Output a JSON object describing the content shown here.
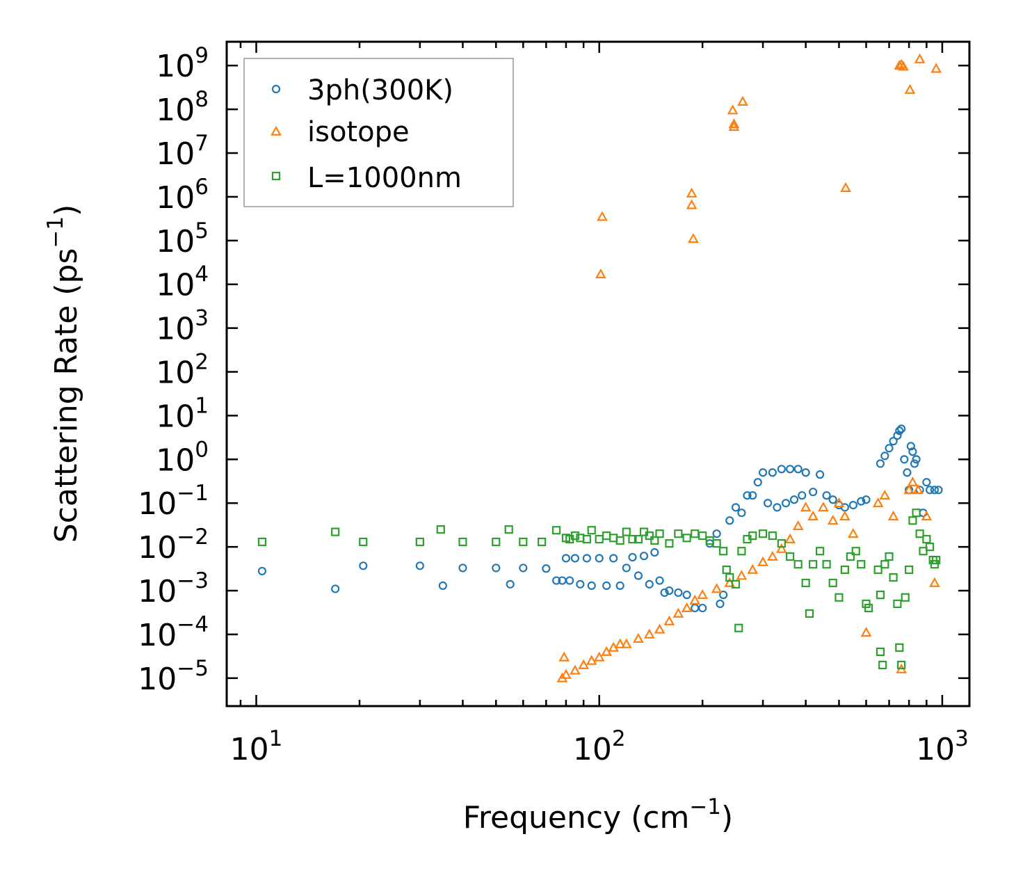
{
  "chart_data": {
    "type": "scatter",
    "title": "",
    "xlabel": {
      "base": "Frequency (cm",
      "sup": "−1",
      "end": ")"
    },
    "ylabel": {
      "base": "Scattering Rate (ps",
      "sup": "−1",
      "end": ")"
    },
    "xscale": "log",
    "yscale": "log",
    "xlim": [
      8.2,
      1200
    ],
    "ylim": [
      2.3e-06,
      3500000000.0
    ],
    "x_ticks": [
      {
        "value": 10,
        "base": "10",
        "exp": "1"
      },
      {
        "value": 100,
        "base": "10",
        "exp": "2"
      },
      {
        "value": 1000,
        "base": "10",
        "exp": "3"
      }
    ],
    "y_ticks": [
      {
        "value": 1e-05,
        "base": "10",
        "exp": "−5"
      },
      {
        "value": 0.0001,
        "base": "10",
        "exp": "−4"
      },
      {
        "value": 0.001,
        "base": "10",
        "exp": "−3"
      },
      {
        "value": 0.01,
        "base": "10",
        "exp": "−2"
      },
      {
        "value": 0.1,
        "base": "10",
        "exp": "−1"
      },
      {
        "value": 1.0,
        "base": "10",
        "exp": "0"
      },
      {
        "value": 10.0,
        "base": "10",
        "exp": "1"
      },
      {
        "value": 100.0,
        "base": "10",
        "exp": "2"
      },
      {
        "value": 1000.0,
        "base": "10",
        "exp": "3"
      },
      {
        "value": 10000.0,
        "base": "10",
        "exp": "4"
      },
      {
        "value": 100000.0,
        "base": "10",
        "exp": "5"
      },
      {
        "value": 1000000.0,
        "base": "10",
        "exp": "6"
      },
      {
        "value": 10000000.0,
        "base": "10",
        "exp": "7"
      },
      {
        "value": 100000000.0,
        "base": "10",
        "exp": "8"
      },
      {
        "value": 1000000000.0,
        "base": "10",
        "exp": "9"
      }
    ],
    "grid": false,
    "legend_position": "top-left",
    "series": [
      {
        "name": "3ph(300K)",
        "color": "#1f77b4",
        "marker": "circle",
        "points": [
          [
            10.4,
            0.0028
          ],
          [
            17,
            0.0011
          ],
          [
            20.5,
            0.0037
          ],
          [
            30,
            0.0037
          ],
          [
            35,
            0.0013
          ],
          [
            40,
            0.0033
          ],
          [
            50,
            0.0033
          ],
          [
            55,
            0.0014
          ],
          [
            60,
            0.0033
          ],
          [
            70,
            0.0032
          ],
          [
            75,
            0.0017
          ],
          [
            78,
            0.0017
          ],
          [
            80,
            0.0055
          ],
          [
            82,
            0.0017
          ],
          [
            85,
            0.0055
          ],
          [
            88,
            0.0014
          ],
          [
            92,
            0.0055
          ],
          [
            95,
            0.0013
          ],
          [
            100,
            0.0055
          ],
          [
            105,
            0.0013
          ],
          [
            110,
            0.0055
          ],
          [
            115,
            0.0013
          ],
          [
            120,
            0.0033
          ],
          [
            125,
            0.0058
          ],
          [
            130,
            0.0022
          ],
          [
            135,
            0.0062
          ],
          [
            140,
            0.0014
          ],
          [
            145,
            0.0075
          ],
          [
            150,
            0.0017
          ],
          [
            155,
            0.0009
          ],
          [
            160,
            0.001
          ],
          [
            170,
            0.0009
          ],
          [
            180,
            0.0008
          ],
          [
            190,
            0.0004
          ],
          [
            200,
            0.0004
          ],
          [
            210,
            0.012
          ],
          [
            220,
            0.02
          ],
          [
            225,
            0.0005
          ],
          [
            230,
            0.0008
          ],
          [
            240,
            0.04
          ],
          [
            250,
            0.08
          ],
          [
            260,
            0.06
          ],
          [
            270,
            0.15
          ],
          [
            280,
            0.15
          ],
          [
            290,
            0.3
          ],
          [
            300,
            0.5
          ],
          [
            310,
            0.1
          ],
          [
            320,
            0.5
          ],
          [
            330,
            0.08
          ],
          [
            340,
            0.6
          ],
          [
            350,
            0.1
          ],
          [
            360,
            0.6
          ],
          [
            370,
            0.12
          ],
          [
            380,
            0.6
          ],
          [
            390,
            0.15
          ],
          [
            400,
            0.5
          ],
          [
            420,
            0.18
          ],
          [
            440,
            0.45
          ],
          [
            460,
            0.15
          ],
          [
            480,
            0.12
          ],
          [
            500,
            0.09
          ],
          [
            520,
            0.08
          ],
          [
            550,
            0.09
          ],
          [
            580,
            0.11
          ],
          [
            600,
            0.12
          ],
          [
            660,
            0.8
          ],
          [
            680,
            1.2
          ],
          [
            700,
            1.8
          ],
          [
            720,
            2.6
          ],
          [
            740,
            3.5
          ],
          [
            750,
            4.5
          ],
          [
            760,
            5.0
          ],
          [
            775,
            1.0
          ],
          [
            790,
            0.5
          ],
          [
            800,
            0.2
          ],
          [
            810,
            2.0
          ],
          [
            820,
            1.5
          ],
          [
            830,
            0.8
          ],
          [
            840,
            1.0
          ],
          [
            860,
            0.2
          ],
          [
            880,
            0.06
          ],
          [
            900,
            0.3
          ],
          [
            920,
            0.2
          ],
          [
            950,
            0.2
          ],
          [
            975,
            0.2
          ]
        ]
      },
      {
        "name": "isotope",
        "color": "#ff7f0e",
        "marker": "triangle",
        "points": [
          [
            78,
            1e-05
          ],
          [
            79,
            3e-05
          ],
          [
            80,
            1.2e-05
          ],
          [
            85,
            1.5e-05
          ],
          [
            90,
            2e-05
          ],
          [
            95,
            2.5e-05
          ],
          [
            100,
            3e-05
          ],
          [
            105,
            4e-05
          ],
          [
            110,
            5e-05
          ],
          [
            115,
            6e-05
          ],
          [
            120,
            6e-05
          ],
          [
            130,
            8e-05
          ],
          [
            140,
            0.0001
          ],
          [
            150,
            0.00013
          ],
          [
            160,
            0.0002
          ],
          [
            170,
            0.0003
          ],
          [
            180,
            0.0004
          ],
          [
            190,
            0.0006
          ],
          [
            200,
            0.0008
          ],
          [
            220,
            0.0011
          ],
          [
            240,
            0.0015
          ],
          [
            260,
            0.0022
          ],
          [
            280,
            0.003
          ],
          [
            300,
            0.0045
          ],
          [
            320,
            0.006
          ],
          [
            340,
            0.009
          ],
          [
            360,
            0.015
          ],
          [
            380,
            0.03
          ],
          [
            400,
            0.08
          ],
          [
            420,
            0.05
          ],
          [
            450,
            0.08
          ],
          [
            480,
            0.04
          ],
          [
            500,
            0.1
          ],
          [
            520,
            0.05
          ],
          [
            550,
            0.02
          ],
          [
            600,
            0.00011
          ],
          [
            650,
            0.1
          ],
          [
            680,
            0.15
          ],
          [
            720,
            0.05
          ],
          [
            760,
            1.6e-05
          ],
          [
            800,
            0.2
          ],
          [
            820,
            0.3
          ],
          [
            850,
            0.2
          ],
          [
            900,
            0.05
          ],
          [
            950,
            0.0015
          ],
          [
            101,
            17000.0
          ],
          [
            102,
            350000.0
          ],
          [
            186,
            1200000.0
          ],
          [
            186,
            650000.0
          ],
          [
            188,
            110000.0
          ],
          [
            245,
            95000000.0
          ],
          [
            247,
            46000000.0
          ],
          [
            247,
            40000000.0
          ],
          [
            262,
            150000000.0
          ],
          [
            523,
            1600000.0
          ],
          [
            750,
            1000000000.0
          ],
          [
            760,
            1050000000.0
          ],
          [
            770,
            950000000.0
          ],
          [
            805,
            280000000.0
          ],
          [
            860,
            1400000000.0
          ],
          [
            960,
            850000000.0
          ]
        ]
      },
      {
        "name": "L=1000nm",
        "color": "#2ca02c",
        "marker": "square",
        "points": [
          [
            10.4,
            0.013
          ],
          [
            17,
            0.022
          ],
          [
            20.5,
            0.013
          ],
          [
            30,
            0.013
          ],
          [
            34.5,
            0.025
          ],
          [
            40,
            0.013
          ],
          [
            50,
            0.013
          ],
          [
            54.5,
            0.025
          ],
          [
            60,
            0.013
          ],
          [
            68,
            0.013
          ],
          [
            75,
            0.024
          ],
          [
            80,
            0.016
          ],
          [
            82,
            0.015
          ],
          [
            85,
            0.018
          ],
          [
            88,
            0.016
          ],
          [
            92,
            0.015
          ],
          [
            95,
            0.024
          ],
          [
            100,
            0.015
          ],
          [
            105,
            0.018
          ],
          [
            110,
            0.016
          ],
          [
            115,
            0.014
          ],
          [
            120,
            0.022
          ],
          [
            125,
            0.015
          ],
          [
            130,
            0.015
          ],
          [
            135,
            0.022
          ],
          [
            140,
            0.018
          ],
          [
            145,
            0.014
          ],
          [
            150,
            0.02
          ],
          [
            160,
            0.012
          ],
          [
            170,
            0.02
          ],
          [
            180,
            0.016
          ],
          [
            190,
            0.02
          ],
          [
            200,
            0.018
          ],
          [
            210,
            0.014
          ],
          [
            220,
            0.012
          ],
          [
            230,
            0.008
          ],
          [
            235,
            0.003
          ],
          [
            240,
            0.002
          ],
          [
            250,
            0.0014
          ],
          [
            255,
            0.00014
          ],
          [
            260,
            0.008
          ],
          [
            270,
            0.015
          ],
          [
            280,
            0.018
          ],
          [
            300,
            0.02
          ],
          [
            320,
            0.018
          ],
          [
            340,
            0.012
          ],
          [
            360,
            0.006
          ],
          [
            380,
            0.004
          ],
          [
            400,
            0.0015
          ],
          [
            410,
            0.0003
          ],
          [
            420,
            0.004
          ],
          [
            440,
            0.008
          ],
          [
            460,
            0.004
          ],
          [
            480,
            0.0015
          ],
          [
            500,
            0.0007
          ],
          [
            520,
            0.003
          ],
          [
            540,
            0.006
          ],
          [
            560,
            0.008
          ],
          [
            580,
            0.004
          ],
          [
            600,
            0.0005
          ],
          [
            610,
            0.0004
          ],
          [
            650,
            0.003
          ],
          [
            660,
            0.0008
          ],
          [
            660,
            4e-05
          ],
          [
            670,
            2e-05
          ],
          [
            680,
            0.004
          ],
          [
            700,
            0.006
          ],
          [
            720,
            0.002
          ],
          [
            740,
            0.0005
          ],
          [
            750,
            5e-05
          ],
          [
            760,
            2e-05
          ],
          [
            780,
            0.0007
          ],
          [
            800,
            0.003
          ],
          [
            820,
            0.04
          ],
          [
            840,
            0.06
          ],
          [
            860,
            0.02
          ],
          [
            880,
            0.008
          ],
          [
            900,
            0.015
          ],
          [
            920,
            0.01
          ],
          [
            940,
            0.005
          ],
          [
            950,
            0.004
          ],
          [
            960,
            0.005
          ]
        ]
      }
    ]
  }
}
